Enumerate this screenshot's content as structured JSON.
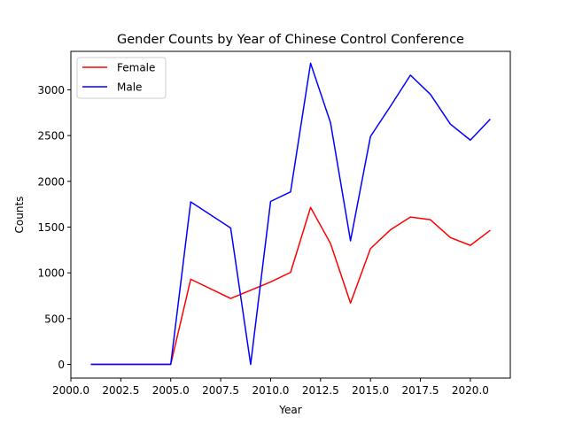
{
  "chart_data": {
    "type": "line",
    "title": "Gender Counts by Year of Chinese Control Conference",
    "xlabel": "Year",
    "ylabel": "Counts",
    "xlim": [
      2000.0,
      2022.0
    ],
    "ylim": [
      -150,
      3420
    ],
    "xticks": [
      2000.0,
      2002.5,
      2005.0,
      2007.5,
      2010.0,
      2012.5,
      2015.0,
      2017.5,
      2020.0
    ],
    "xtick_labels": [
      "2000.0",
      "2002.5",
      "2005.0",
      "2007.5",
      "2010.0",
      "2012.5",
      "2015.0",
      "2017.5",
      "2020.0"
    ],
    "yticks": [
      0,
      500,
      1000,
      1500,
      2000,
      2500,
      3000
    ],
    "ytick_labels": [
      "0",
      "500",
      "1000",
      "1500",
      "2000",
      "2500",
      "3000"
    ],
    "grid": false,
    "legend_position": "top-left",
    "x": [
      2001,
      2005,
      2006,
      2008,
      2009,
      2010,
      2011,
      2012,
      2013,
      2014,
      2015,
      2016,
      2017,
      2018,
      2019,
      2020,
      2021
    ],
    "series": [
      {
        "name": "Female",
        "color": "#ff0000",
        "values": [
          0,
          0,
          930,
          720,
          810,
          900,
          1005,
          1715,
          1320,
          670,
          1265,
          1470,
          1610,
          1580,
          1385,
          1300,
          1465
        ]
      },
      {
        "name": "Male",
        "color": "#0000ff",
        "values": [
          0,
          0,
          1775,
          1490,
          0,
          1780,
          1885,
          3290,
          2640,
          1350,
          2490,
          2820,
          3160,
          2950,
          2625,
          2450,
          2680
        ]
      }
    ]
  }
}
